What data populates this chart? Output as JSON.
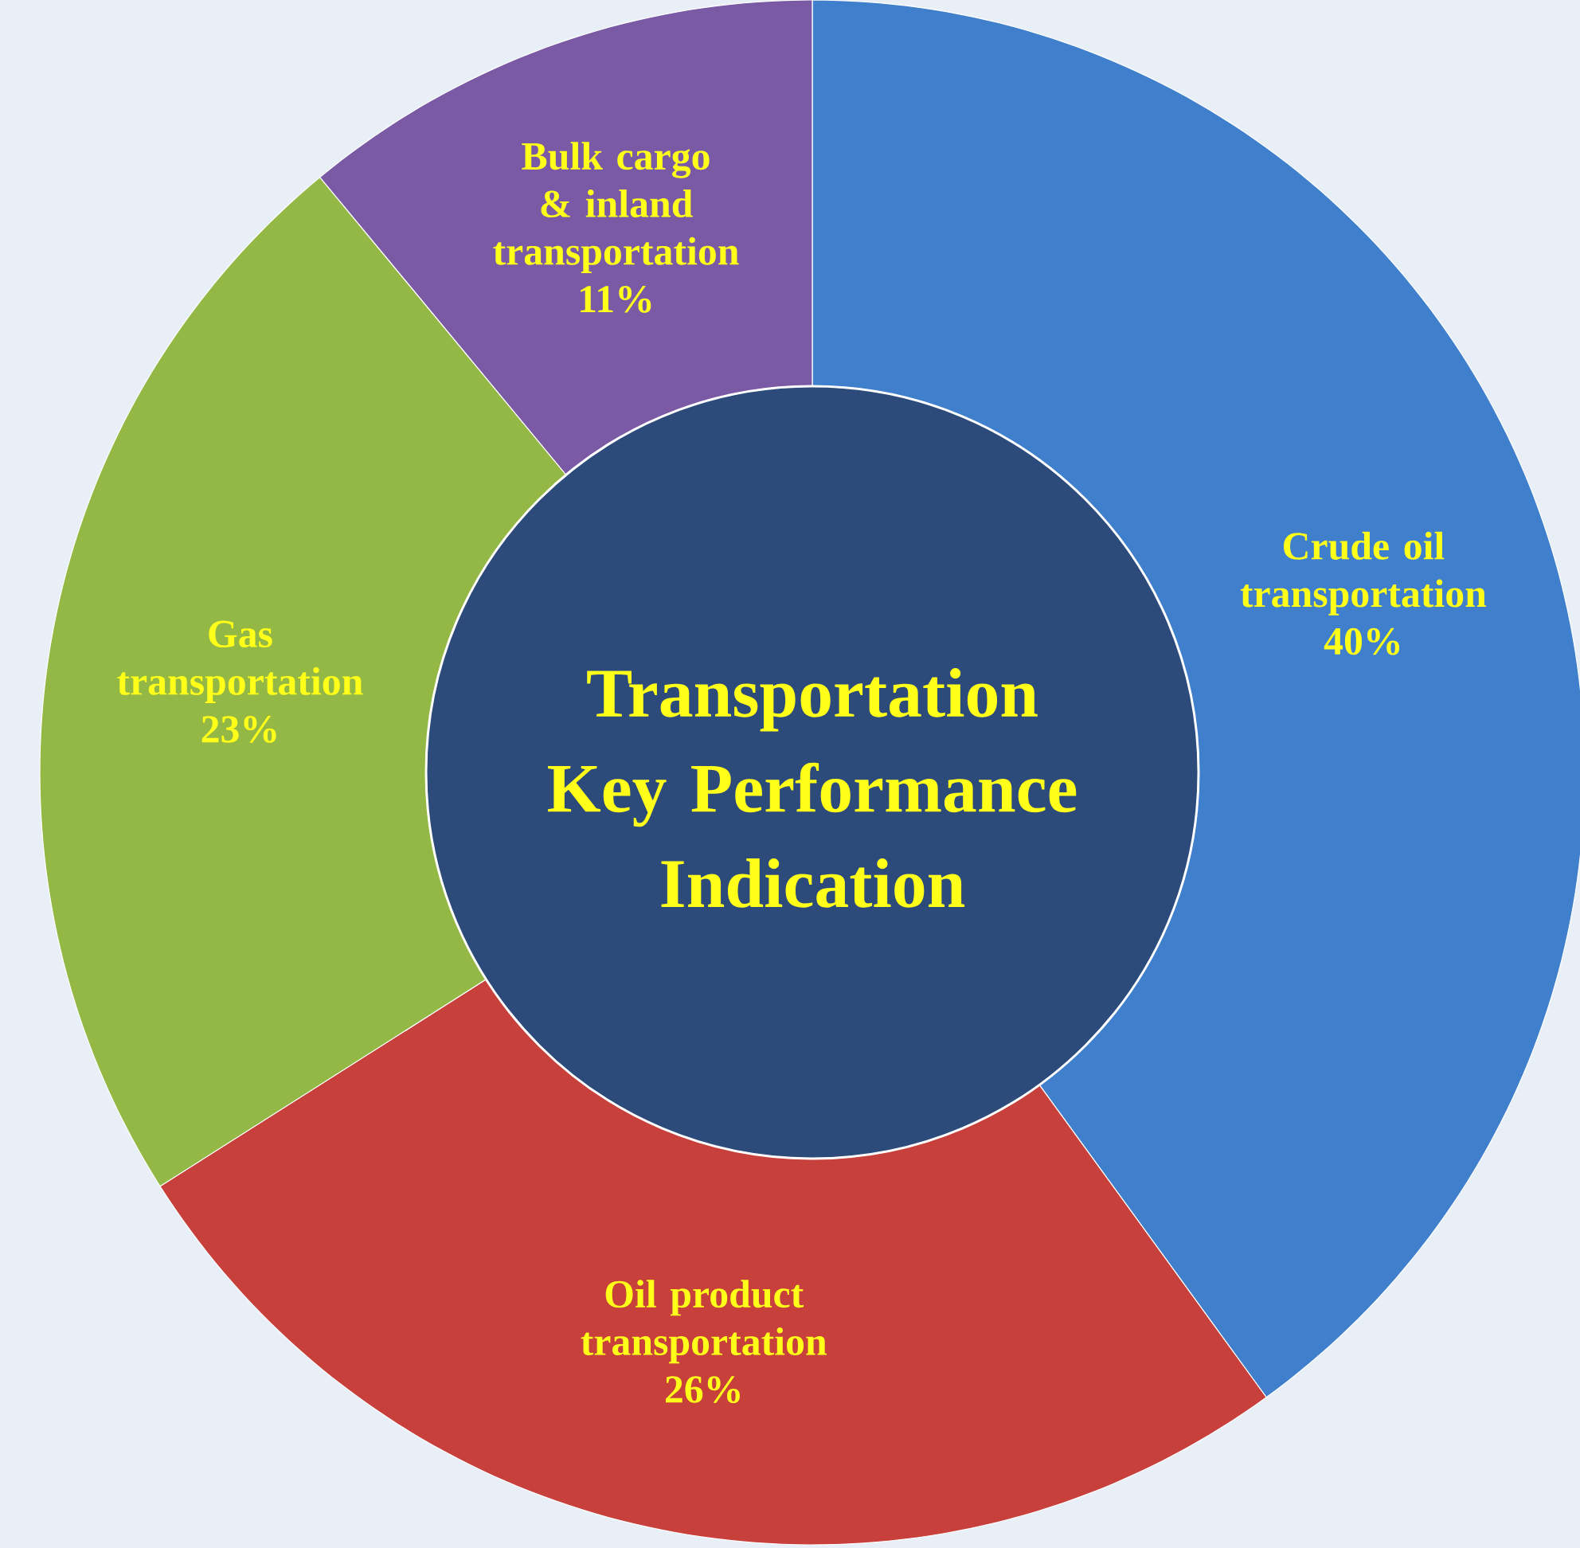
{
  "chart_data": {
    "type": "donut",
    "title": "Transportation Key Performance Indication",
    "categories": [
      "Crude oil transportation",
      "Oil product transportation",
      "Gas transportation",
      "Bulk cargo & inland transportation"
    ],
    "values": [
      40,
      26,
      23,
      11
    ],
    "value_labels": [
      "40%",
      "26%",
      "23%",
      "11%"
    ],
    "colors": [
      "#3f7fcc",
      "#c8403c",
      "#94b845",
      "#7a5aa5"
    ]
  }
}
